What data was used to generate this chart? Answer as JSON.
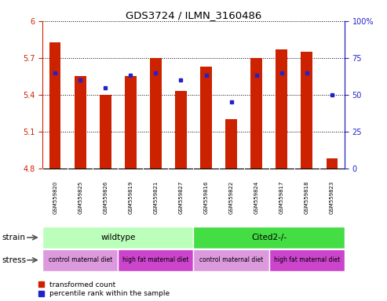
{
  "title": "GDS3724 / ILMN_3160486",
  "samples": [
    "GSM559820",
    "GSM559825",
    "GSM559826",
    "GSM559819",
    "GSM559821",
    "GSM559827",
    "GSM559816",
    "GSM559822",
    "GSM559824",
    "GSM559817",
    "GSM559818",
    "GSM559823"
  ],
  "bar_values": [
    5.83,
    5.55,
    5.4,
    5.55,
    5.7,
    5.43,
    5.63,
    5.2,
    5.7,
    5.77,
    5.75,
    4.88
  ],
  "percentile_values": [
    65,
    60,
    55,
    63,
    65,
    60,
    63,
    45,
    63,
    65,
    65,
    50
  ],
  "ymin": 4.8,
  "ymax": 6.0,
  "yticks": [
    4.8,
    5.1,
    5.4,
    5.7,
    6.0
  ],
  "ytick_labels": [
    "4.8",
    "5.1",
    "5.4",
    "5.7",
    "6"
  ],
  "right_yticks": [
    0,
    25,
    50,
    75,
    100
  ],
  "right_ytick_labels": [
    "0",
    "25",
    "50",
    "75",
    "100%"
  ],
  "bar_color": "#cc2200",
  "dot_color": "#2222cc",
  "bar_width": 0.45,
  "strain_groups": [
    {
      "label": "wildtype",
      "start": 0,
      "end": 6,
      "color": "#bbffbb"
    },
    {
      "label": "Cited2-/-",
      "start": 6,
      "end": 12,
      "color": "#44dd44"
    }
  ],
  "stress_groups": [
    {
      "label": "control maternal diet",
      "start": 0,
      "end": 3,
      "color": "#dd99dd"
    },
    {
      "label": "high fat maternal diet",
      "start": 3,
      "end": 6,
      "color": "#cc44cc"
    },
    {
      "label": "control maternal diet",
      "start": 6,
      "end": 9,
      "color": "#dd99dd"
    },
    {
      "label": "high fat maternal diet",
      "start": 9,
      "end": 12,
      "color": "#cc44cc"
    }
  ],
  "legend_red_label": "transformed count",
  "legend_blue_label": "percentile rank within the sample",
  "strain_label": "strain",
  "stress_label": "stress",
  "tick_color_left": "#cc2200",
  "tick_color_right": "#2222cc",
  "background_color": "#ffffff"
}
